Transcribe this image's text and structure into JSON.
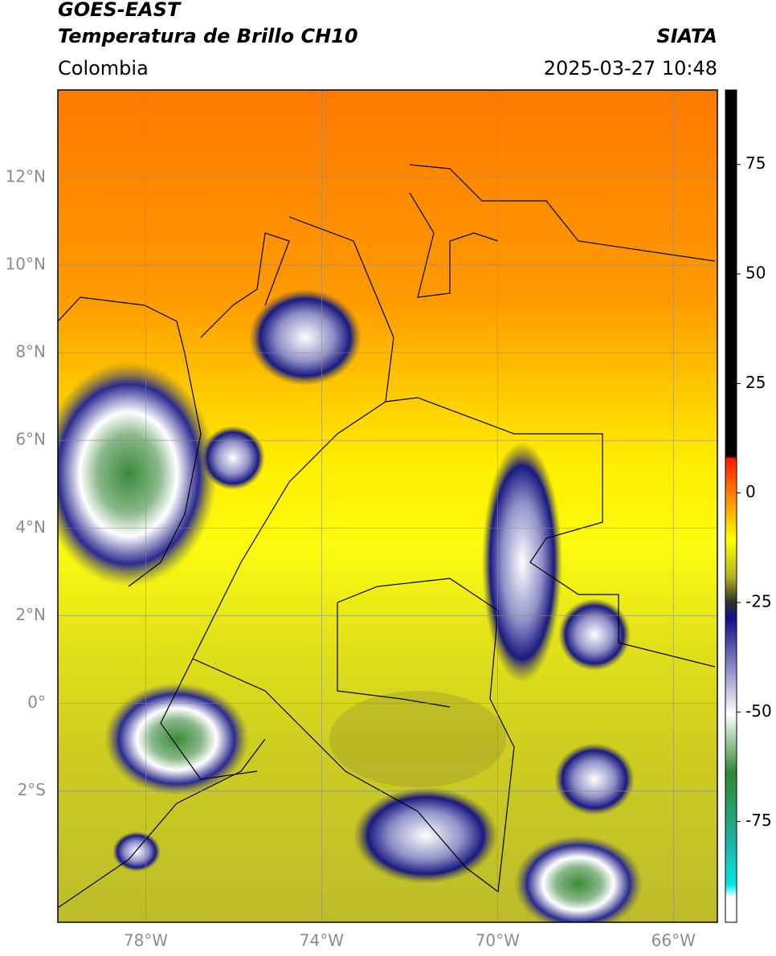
{
  "header": {
    "title": "GOES-EAST",
    "subtitle": "Temperatura de Brillo CH10",
    "source": "SIATA",
    "region": "Colombia",
    "timestamp": "2025-03-27 10:48"
  },
  "map": {
    "lon_range": [
      -80,
      -65
    ],
    "lat_range": [
      -5,
      14
    ],
    "lon_ticks": [
      {
        "value": -78,
        "label": "78°W"
      },
      {
        "value": -74,
        "label": "74°W"
      },
      {
        "value": -70,
        "label": "70°W"
      },
      {
        "value": -66,
        "label": "66°W"
      }
    ],
    "lat_ticks": [
      {
        "value": 12,
        "label": "12°N"
      },
      {
        "value": 10,
        "label": "10°N"
      },
      {
        "value": 8,
        "label": "8°N"
      },
      {
        "value": 6,
        "label": "6°N"
      },
      {
        "value": 4,
        "label": "4°N"
      },
      {
        "value": 2,
        "label": "2°N"
      },
      {
        "value": 0,
        "label": "0°"
      },
      {
        "value": -2,
        "label": "2°S"
      }
    ]
  },
  "colorbar": {
    "range": [
      -98,
      92
    ],
    "ticks": [
      75,
      50,
      25,
      0,
      -25,
      -50,
      -75
    ]
  }
}
